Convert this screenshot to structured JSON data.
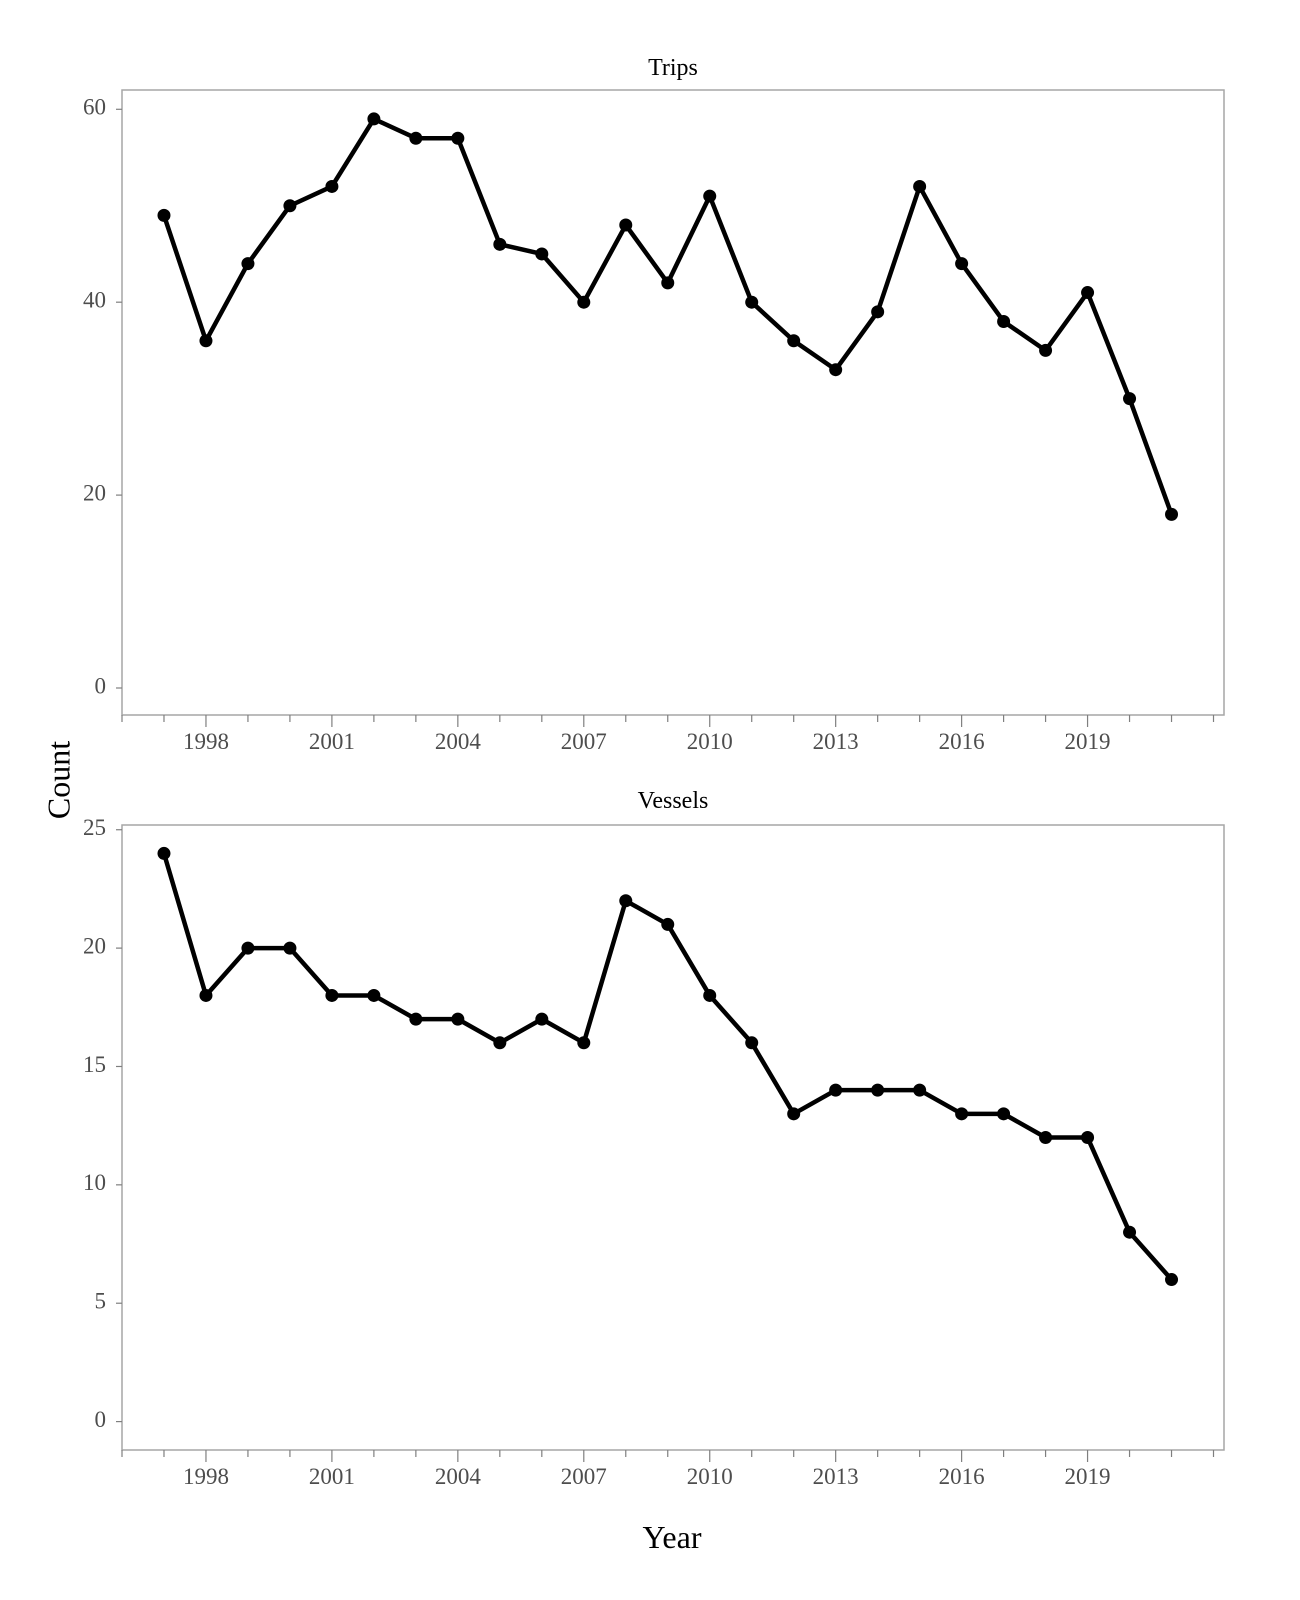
{
  "figure": {
    "ylabel": "Count",
    "xlabel": "Year"
  },
  "chart_data": [
    {
      "type": "line",
      "title": "Trips",
      "x": [
        1997,
        1998,
        1999,
        2000,
        2001,
        2002,
        2003,
        2004,
        2005,
        2006,
        2007,
        2008,
        2009,
        2010,
        2011,
        2012,
        2013,
        2014,
        2015,
        2016,
        2017,
        2018,
        2019,
        2020,
        2021
      ],
      "series": [
        {
          "values": [
            49,
            36,
            44,
            50,
            52,
            59,
            57,
            57,
            46,
            45,
            40,
            48,
            42,
            51,
            40,
            36,
            33,
            39,
            52,
            44,
            38,
            35,
            41,
            30,
            18
          ]
        }
      ],
      "xticks": [
        1998,
        2001,
        2004,
        2007,
        2010,
        2013,
        2016,
        2019
      ],
      "xtick_labels": [
        "1998",
        "2001",
        "2004",
        "2007",
        "2010",
        "2013",
        "2016",
        "2019"
      ],
      "yticks": [
        0,
        20,
        40,
        60
      ],
      "ytick_labels": [
        "0",
        "20",
        "40",
        "60"
      ],
      "xlim": [
        1996,
        2022.25
      ],
      "ylim": [
        -2.8,
        62
      ],
      "grid": false,
      "markers": true,
      "color": "#000000"
    },
    {
      "type": "line",
      "title": "Vessels",
      "x": [
        1997,
        1998,
        1999,
        2000,
        2001,
        2002,
        2003,
        2004,
        2005,
        2006,
        2007,
        2008,
        2009,
        2010,
        2011,
        2012,
        2013,
        2014,
        2015,
        2016,
        2017,
        2018,
        2019,
        2020,
        2021
      ],
      "series": [
        {
          "values": [
            24,
            18,
            20,
            20,
            18,
            18,
            17,
            17,
            16,
            17,
            16,
            22,
            21,
            18,
            16,
            13,
            14,
            14,
            14,
            13,
            13,
            12,
            12,
            8,
            6
          ]
        }
      ],
      "xticks": [
        1998,
        2001,
        2004,
        2007,
        2010,
        2013,
        2016,
        2019
      ],
      "xtick_labels": [
        "1998",
        "2001",
        "2004",
        "2007",
        "2010",
        "2013",
        "2016",
        "2019"
      ],
      "yticks": [
        0,
        5,
        10,
        15,
        20,
        25
      ],
      "ytick_labels": [
        "0",
        "5",
        "10",
        "15",
        "20",
        "25"
      ],
      "xlim": [
        1996,
        2022.25
      ],
      "ylim": [
        -1.2,
        25.2
      ],
      "grid": false,
      "markers": true,
      "color": "#000000"
    }
  ]
}
